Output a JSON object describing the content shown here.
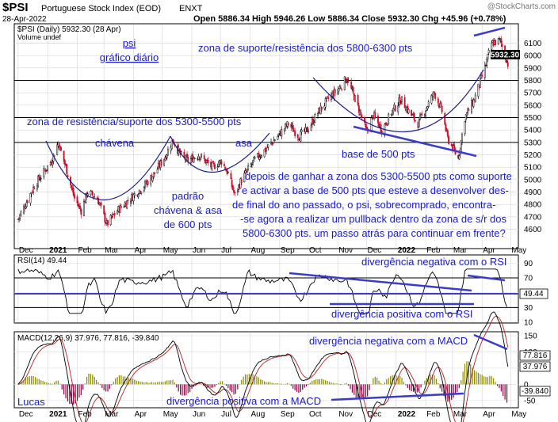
{
  "header": {
    "symbol": "$PSI",
    "name": "Portuguese Stock Index (EOD)",
    "exchange": "ENXT",
    "date": "28-Apr-2022",
    "watermark": "@StockCharts.com",
    "ohlc": "Open 5886.34  High 5946.26  Low 5886.34  Close 5932.30  Chg +45.96 (+0.78%)",
    "chg_color": "#00a000"
  },
  "chart_data": [
    {
      "type": "candlestick",
      "legend": [
        "$PSI (Daily) 5932.30 (28 Apr)",
        "Volume undef"
      ],
      "ylim": [
        4450,
        6250
      ],
      "y_ticks": [
        4600,
        4700,
        4800,
        4900,
        5000,
        5100,
        5200,
        5300,
        5400,
        5500,
        5600,
        5700,
        5800,
        5900,
        6000,
        6100
      ],
      "last_value": "5932.30",
      "x_labels": [
        "Dec",
        "2021",
        "Feb",
        "Mar",
        "Apr",
        "May",
        "Jun",
        "Jul",
        "Aug",
        "Sep",
        "Oct",
        "Nov",
        "Dec",
        "2022",
        "Feb",
        "Mar",
        "Apr",
        "May"
      ],
      "horizontal_levels": [
        5800,
        5500,
        5300
      ],
      "price_path": [
        [
          "2020-12-01",
          4680
        ],
        [
          "2020-12-18",
          4950
        ],
        [
          "2021-01-05",
          5150
        ],
        [
          "2021-01-12",
          5300
        ],
        [
          "2021-01-20",
          5100
        ],
        [
          "2021-01-29",
          4850
        ],
        [
          "2021-02-05",
          4750
        ],
        [
          "2021-02-12",
          4900
        ],
        [
          "2021-02-22",
          4850
        ],
        [
          "2021-03-04",
          4640
        ],
        [
          "2021-03-15",
          4750
        ],
        [
          "2021-03-29",
          4850
        ],
        [
          "2021-04-12",
          4950
        ],
        [
          "2021-04-23",
          5050
        ],
        [
          "2021-05-05",
          5200
        ],
        [
          "2021-05-12",
          5320
        ],
        [
          "2021-05-20",
          5200
        ],
        [
          "2021-05-28",
          5150
        ],
        [
          "2021-06-08",
          5200
        ],
        [
          "2021-06-22",
          5100
        ],
        [
          "2021-07-02",
          5150
        ],
        [
          "2021-07-09",
          5050
        ],
        [
          "2021-07-16",
          4870
        ],
        [
          "2021-07-23",
          5000
        ],
        [
          "2021-08-05",
          5150
        ],
        [
          "2021-08-18",
          5250
        ],
        [
          "2021-08-30",
          5350
        ],
        [
          "2021-09-10",
          5450
        ],
        [
          "2021-09-21",
          5350
        ],
        [
          "2021-09-30",
          5400
        ],
        [
          "2021-10-12",
          5550
        ],
        [
          "2021-10-22",
          5650
        ],
        [
          "2021-11-04",
          5750
        ],
        [
          "2021-11-10",
          5820
        ],
        [
          "2021-11-19",
          5650
        ],
        [
          "2021-11-26",
          5500
        ],
        [
          "2021-12-01",
          5380
        ],
        [
          "2021-12-08",
          5520
        ],
        [
          "2021-12-17",
          5400
        ],
        [
          "2021-12-28",
          5550
        ],
        [
          "2022-01-06",
          5650
        ],
        [
          "2022-01-14",
          5550
        ],
        [
          "2022-01-24",
          5450
        ],
        [
          "2022-02-03",
          5600
        ],
        [
          "2022-02-10",
          5700
        ],
        [
          "2022-02-18",
          5550
        ],
        [
          "2022-02-24",
          5330
        ],
        [
          "2022-03-07",
          5170
        ],
        [
          "2022-03-14",
          5500
        ],
        [
          "2022-03-24",
          5650
        ],
        [
          "2022-04-04",
          5900
        ],
        [
          "2022-04-11",
          6100
        ],
        [
          "2022-04-20",
          6120
        ],
        [
          "2022-04-28",
          5932
        ]
      ],
      "annotations": [
        "psi",
        "gráfico diário",
        "zona de suporte/resistência dos 5800-6300 pts",
        "zona de resistência/suporte  dos 5300-5500 pts",
        "chávena",
        "asa",
        "base de 500 pts",
        "padrão",
        "chávena & asa",
        "de 600 pts",
        "depois de ganhar a zona dos 5300-5500 pts como suporte",
        "e activar a base de 500 pts que esteve a desenvolver des-",
        "de final do ano passado, o psi, sobrecomprado, encontra-",
        "-se agora a realizar um pullback dentro da zona de s/r dos",
        "5800-6300 pts. um passo atrás para continuar em frente?"
      ]
    },
    {
      "type": "line",
      "legend": "RSI(14) 49.44",
      "ylim": [
        10,
        100
      ],
      "y_ticks": [
        10,
        30,
        50,
        70,
        90
      ],
      "reference_lines": [
        70,
        30
      ],
      "last_value": "49.44",
      "annotations": [
        "divergência negativa com o RSI",
        "divergência positiva com o RSI"
      ]
    },
    {
      "type": "line",
      "legend": "MACD(12,26,9) 37.976, 77.816, -39.840",
      "ylim": [
        -70,
        160
      ],
      "y_ticks": [
        -50,
        0,
        50,
        100,
        150
      ],
      "last_values": [
        "77.816",
        "37.976",
        "-39.840"
      ],
      "x_labels": [
        "Dec",
        "2021",
        "Feb",
        "Mar",
        "Apr",
        "May",
        "Jun",
        "Jul",
        "Aug",
        "Sep",
        "Oct",
        "Nov",
        "Dec",
        "2022",
        "Feb",
        "Mar",
        "Apr",
        "May"
      ],
      "annotations": [
        "divergência negativa com a MACD",
        "divergência positiva com a MACD"
      ],
      "signature": "Lucas"
    }
  ],
  "colors": {
    "annotation": "#1a1ac8",
    "up_candle": "#000000",
    "down_candle": "#c8102e",
    "macd_line": "#000000",
    "signal_line": "#b22222",
    "hist_positive": "#8b8b00",
    "hist_negative": "#8b0040",
    "trendline": "#3c3cc8"
  }
}
